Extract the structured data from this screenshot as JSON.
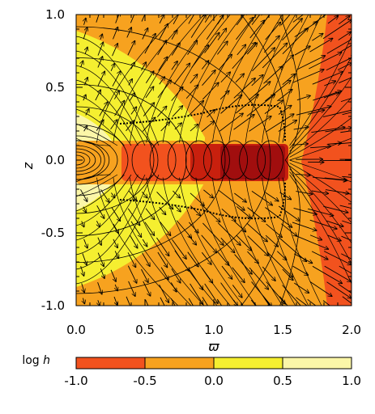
{
  "chart_data": {
    "type": "heatmap",
    "title": "",
    "xlabel": "ϖ",
    "ylabel": "z",
    "xlim": [
      0.0,
      2.0
    ],
    "ylim": [
      -1.0,
      1.0
    ],
    "x_ticks": [
      "0.0",
      "0.5",
      "1.0",
      "1.5",
      "2.0"
    ],
    "y_ticks": [
      "1.0",
      "0.5",
      "0.0",
      "-0.5",
      "-1.0"
    ],
    "overlays": [
      "velocity-vector-field",
      "streamlines",
      "contour-lines",
      "dotted-boundary-curve"
    ],
    "colorbar": {
      "label_prefix": "log",
      "label_var": "h",
      "ticks": [
        "-1.0",
        "-0.5",
        "0.0",
        "0.5",
        "1.0"
      ],
      "bands": [
        {
          "from": -1.0,
          "to": -0.5,
          "color": "#f2521e"
        },
        {
          "from": -0.5,
          "to": 0.0,
          "color": "#f7a21f"
        },
        {
          "from": 0.0,
          "to": 0.5,
          "color": "#f5ef30"
        },
        {
          "from": 0.5,
          "to": 1.0,
          "color": "#fbf6a8"
        }
      ],
      "extra_colors": {
        "below_min": "#a10e0e",
        "lower": "#c8200e"
      }
    }
  }
}
